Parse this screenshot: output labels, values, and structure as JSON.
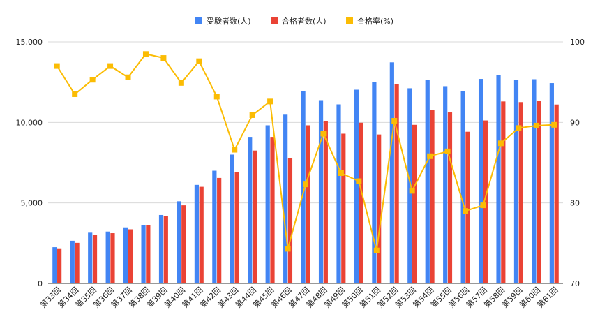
{
  "chart_data": {
    "type": "bar",
    "categories": [
      "第33回",
      "第34回",
      "第35回",
      "第36回",
      "第37回",
      "第38回",
      "第39回",
      "第40回",
      "第41回",
      "第42回",
      "第43回",
      "第44回",
      "第45回",
      "第46回",
      "第47回",
      "第48回",
      "第49回",
      "第50回",
      "第51回",
      "第52回",
      "第53回",
      "第54回",
      "第55回",
      "第56回",
      "第57回",
      "第58回",
      "第59回",
      "第60回",
      "第61回"
    ],
    "series": [
      {
        "name": "受験者数(人)",
        "type": "bar",
        "axis": "left",
        "color": "#4285f4",
        "values": [
          2250,
          2650,
          3150,
          3220,
          3480,
          3620,
          4250,
          5100,
          6120,
          7000,
          8000,
          9100,
          9820,
          10480,
          11950,
          11380,
          11120,
          12030,
          12520,
          13730,
          12120,
          12620,
          12250,
          11950,
          12700,
          12950,
          12620,
          12680,
          12440
        ]
      },
      {
        "name": "合格者数(人)",
        "type": "bar",
        "axis": "left",
        "color": "#ea4335",
        "values": [
          2180,
          2520,
          3000,
          3120,
          3360,
          3620,
          4180,
          4850,
          6000,
          6550,
          6900,
          8250,
          9100,
          7780,
          9820,
          10100,
          9300,
          9980,
          9250,
          12380,
          9850,
          10780,
          10620,
          9420,
          10120,
          11300,
          11260,
          11340,
          11110
        ]
      },
      {
        "name": "合格率(%)",
        "type": "line",
        "axis": "right",
        "color": "#fbbc04",
        "values": [
          97.0,
          93.5,
          95.3,
          97.0,
          95.6,
          98.5,
          98.0,
          94.9,
          97.6,
          93.2,
          86.6,
          90.9,
          92.6,
          74.3,
          82.3,
          88.6,
          83.7,
          82.7,
          74.1,
          90.2,
          81.5,
          85.8,
          86.4,
          79.0,
          79.7,
          87.4,
          89.3,
          89.6,
          89.7
        ]
      }
    ],
    "y_left": {
      "ylim": [
        0,
        15000
      ],
      "ticks": [
        "0",
        "5,000",
        "10,000",
        "15,000"
      ],
      "tick_values": [
        0,
        5000,
        10000,
        15000
      ]
    },
    "y_right": {
      "ylim": [
        70,
        100
      ],
      "ticks": [
        "70",
        "80",
        "90",
        "100"
      ],
      "tick_values": [
        70,
        80,
        90,
        100
      ]
    },
    "grid": true,
    "legend_position": "top-center"
  }
}
